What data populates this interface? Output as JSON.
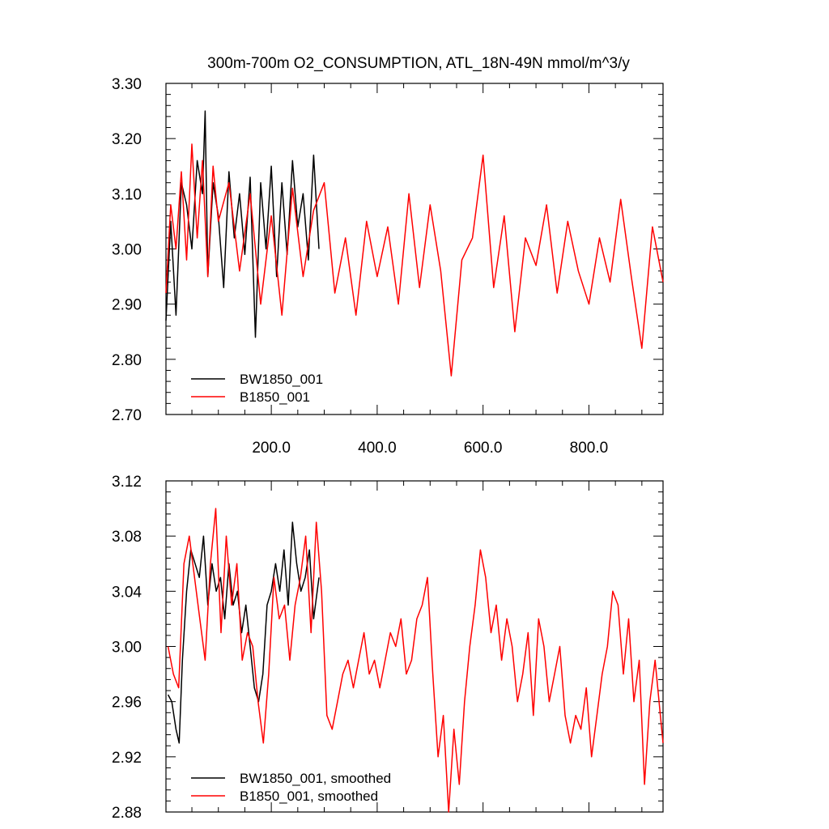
{
  "chart_data": [
    {
      "type": "line",
      "title": "300m-700m O2_CONSUMPTION, ATL_18N-49N   mmol/m^3/y",
      "xlim": [
        1,
        940
      ],
      "ylim": [
        2.7,
        3.3
      ],
      "x_ticks": [
        200,
        400,
        600,
        800
      ],
      "x_tick_labels": [
        "200.0",
        "400.0",
        "600.0",
        "800.0"
      ],
      "y_ticks": [
        2.7,
        2.8,
        2.9,
        3.0,
        3.1,
        3.2,
        3.3
      ],
      "y_tick_labels": [
        "2.70",
        "2.80",
        "2.90",
        "3.00",
        "3.10",
        "3.20",
        "3.30"
      ],
      "legend_position": "bottom-left",
      "series": [
        {
          "name": "BW1850_001",
          "color": "#000000",
          "x": [
            1,
            10,
            20,
            30,
            40,
            50,
            60,
            70,
            75,
            80,
            90,
            100,
            110,
            120,
            130,
            140,
            150,
            160,
            170,
            180,
            190,
            200,
            210,
            220,
            230,
            240,
            250,
            260,
            270,
            280,
            290
          ],
          "y": [
            2.87,
            3.05,
            2.88,
            3.12,
            3.08,
            3.0,
            3.16,
            3.1,
            3.25,
            2.95,
            3.12,
            3.06,
            2.93,
            3.14,
            3.02,
            3.1,
            2.99,
            3.13,
            2.84,
            3.12,
            3.0,
            3.15,
            2.95,
            3.12,
            2.99,
            3.16,
            3.04,
            3.1,
            2.98,
            3.17,
            3.0
          ]
        },
        {
          "name": "B1850_001",
          "color": "#ff0000",
          "x": [
            1,
            10,
            20,
            30,
            40,
            50,
            60,
            70,
            80,
            90,
            100,
            120,
            140,
            160,
            180,
            200,
            220,
            240,
            260,
            280,
            300,
            320,
            340,
            360,
            380,
            400,
            420,
            440,
            460,
            480,
            500,
            520,
            540,
            560,
            580,
            600,
            620,
            640,
            660,
            680,
            700,
            720,
            740,
            760,
            780,
            800,
            820,
            840,
            860,
            880,
            900,
            920,
            940
          ],
          "y": [
            2.92,
            3.08,
            3.0,
            3.14,
            2.98,
            3.19,
            3.02,
            3.16,
            2.95,
            3.15,
            3.05,
            3.12,
            2.96,
            3.1,
            2.9,
            3.06,
            2.88,
            3.11,
            2.95,
            3.07,
            3.12,
            2.92,
            3.02,
            2.88,
            3.05,
            2.95,
            3.04,
            2.9,
            3.1,
            2.93,
            3.08,
            2.96,
            2.77,
            2.98,
            3.02,
            3.17,
            2.93,
            3.06,
            2.85,
            3.02,
            2.97,
            3.08,
            2.92,
            3.05,
            2.96,
            2.9,
            3.02,
            2.94,
            3.09,
            2.95,
            2.82,
            3.04,
            2.94
          ]
        }
      ]
    },
    {
      "type": "line",
      "xlim": [
        1,
        940
      ],
      "ylim": [
        2.88,
        3.12
      ],
      "y_ticks": [
        2.88,
        2.92,
        2.96,
        3.0,
        3.04,
        3.08,
        3.12
      ],
      "y_tick_labels": [
        "2.88",
        "2.92",
        "2.96",
        "3.00",
        "3.04",
        "3.08",
        "3.12"
      ],
      "legend_position": "bottom-left",
      "series": [
        {
          "name": "BW1850_001, smoothed",
          "color": "#000000",
          "x": [
            5,
            12,
            20,
            26,
            32,
            40,
            48,
            56,
            64,
            72,
            80,
            88,
            96,
            104,
            112,
            120,
            128,
            136,
            144,
            152,
            160,
            168,
            176,
            184,
            192,
            200,
            208,
            216,
            224,
            232,
            240,
            248,
            256,
            264,
            272,
            280,
            290
          ],
          "y": [
            2.965,
            2.96,
            2.94,
            2.93,
            2.99,
            3.04,
            3.07,
            3.06,
            3.05,
            3.08,
            3.03,
            3.06,
            3.04,
            3.05,
            3.02,
            3.06,
            3.03,
            3.04,
            3.01,
            3.03,
            3.0,
            2.97,
            2.96,
            2.98,
            3.03,
            3.04,
            3.06,
            3.04,
            3.07,
            3.03,
            3.09,
            3.06,
            3.04,
            3.05,
            3.07,
            3.02,
            3.05
          ]
        },
        {
          "name": "B1850_001, smoothed",
          "color": "#ff0000",
          "x": [
            5,
            15,
            25,
            35,
            45,
            55,
            65,
            75,
            85,
            95,
            105,
            115,
            125,
            135,
            145,
            155,
            165,
            175,
            185,
            195,
            205,
            215,
            225,
            235,
            245,
            255,
            265,
            275,
            285,
            295,
            305,
            315,
            325,
            335,
            345,
            355,
            365,
            375,
            385,
            395,
            405,
            415,
            425,
            435,
            445,
            455,
            465,
            475,
            485,
            495,
            505,
            515,
            525,
            535,
            545,
            555,
            565,
            575,
            585,
            595,
            605,
            615,
            625,
            635,
            645,
            655,
            665,
            675,
            685,
            695,
            705,
            715,
            725,
            735,
            745,
            755,
            765,
            775,
            785,
            795,
            805,
            815,
            825,
            835,
            845,
            855,
            865,
            875,
            885,
            895,
            905,
            915,
            925,
            935,
            940
          ],
          "y": [
            3.0,
            2.98,
            2.97,
            3.06,
            3.08,
            3.05,
            3.02,
            2.99,
            3.06,
            3.1,
            3.01,
            3.08,
            3.03,
            3.06,
            2.99,
            3.01,
            3.0,
            2.96,
            2.93,
            2.98,
            3.05,
            3.02,
            3.03,
            2.99,
            3.03,
            3.05,
            3.08,
            3.01,
            3.09,
            3.04,
            2.95,
            2.94,
            2.96,
            2.98,
            2.99,
            2.97,
            2.99,
            3.01,
            2.98,
            2.99,
            2.97,
            2.99,
            3.01,
            3.0,
            3.02,
            2.98,
            2.99,
            3.02,
            3.03,
            3.05,
            2.98,
            2.92,
            2.95,
            2.88,
            2.94,
            2.9,
            2.96,
            3.0,
            3.03,
            3.07,
            3.05,
            3.01,
            3.03,
            2.99,
            3.02,
            3.0,
            2.96,
            2.98,
            3.01,
            2.95,
            3.02,
            3.0,
            2.96,
            2.98,
            3.0,
            2.95,
            2.93,
            2.95,
            2.94,
            2.97,
            2.92,
            2.95,
            2.98,
            3.0,
            3.04,
            3.03,
            2.98,
            3.02,
            2.96,
            2.99,
            2.9,
            2.96,
            2.99,
            2.95,
            2.93
          ]
        }
      ]
    }
  ]
}
